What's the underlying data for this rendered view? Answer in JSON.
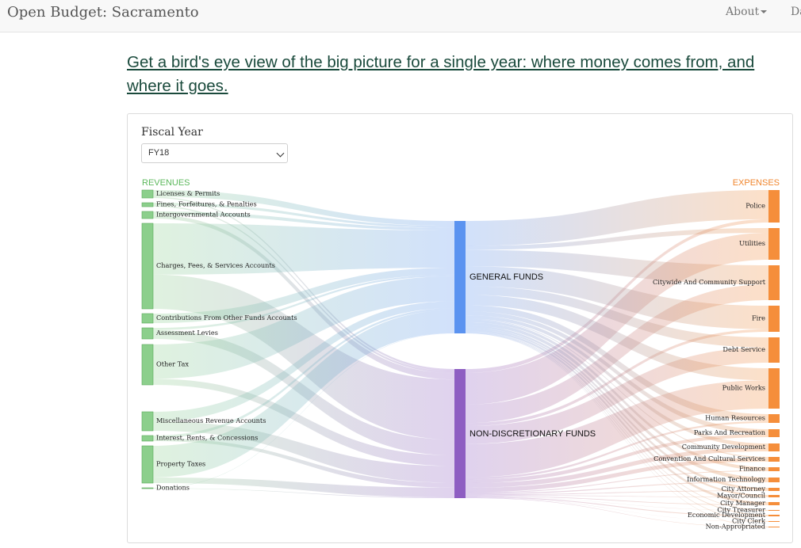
{
  "navbar": {
    "brand": "Open Budget: Sacramento",
    "about": "About",
    "dashboard_partial": "Da"
  },
  "intro": {
    "link_text": "Get a bird's eye view of the big picture for a single year: where money comes from, and where it goes."
  },
  "filter": {
    "label": "Fiscal Year",
    "selected": "FY18"
  },
  "sankey": {
    "revenues_header": "REVENUES",
    "expenses_header": "EXPENSES",
    "colors": {
      "revenue": "#8ccf8c",
      "revenue_stroke": "#5aa85a",
      "general": "#5b93f0",
      "nondisc": "#8e5ec2",
      "expense": "#f58e3b",
      "revenue_header": "#5cb85c",
      "expense_header": "#f0862e"
    },
    "middle_nodes": [
      {
        "id": "general",
        "label": "GENERAL FUNDS"
      },
      {
        "id": "nondisc",
        "label": "NON-DISCRETIONARY FUNDS"
      }
    ],
    "revenues": [
      {
        "label": "Licenses & Permits"
      },
      {
        "label": "Fines, Forfeitures, & Penalties"
      },
      {
        "label": "Intergovernmental Accounts"
      },
      {
        "label": "Charges, Fees, & Services Accounts"
      },
      {
        "label": "Contributions From Other Funds Accounts"
      },
      {
        "label": "Assessment Levies"
      },
      {
        "label": "Other Tax"
      },
      {
        "label": "Miscellaneous Revenue Accounts"
      },
      {
        "label": "Interest, Rents, & Concessions"
      },
      {
        "label": "Property Taxes"
      },
      {
        "label": "Donations"
      }
    ],
    "expenses": [
      {
        "label": "Police"
      },
      {
        "label": "Utilities"
      },
      {
        "label": "Citywide And Community Support"
      },
      {
        "label": "Fire"
      },
      {
        "label": "Debt Service"
      },
      {
        "label": "Public Works"
      },
      {
        "label": "Human Resources"
      },
      {
        "label": "Parks And Recreation"
      },
      {
        "label": "Community Development"
      },
      {
        "label": "Convention And Cultural Services"
      },
      {
        "label": "Finance"
      },
      {
        "label": "Information Technology"
      },
      {
        "label": "City Attorney"
      },
      {
        "label": "Mayor/Council"
      },
      {
        "label": "City Manager"
      },
      {
        "label": "City Treasurer"
      },
      {
        "label": "Economic Development"
      },
      {
        "label": "City Clerk"
      },
      {
        "label": "Non-Appropriated"
      }
    ]
  }
}
